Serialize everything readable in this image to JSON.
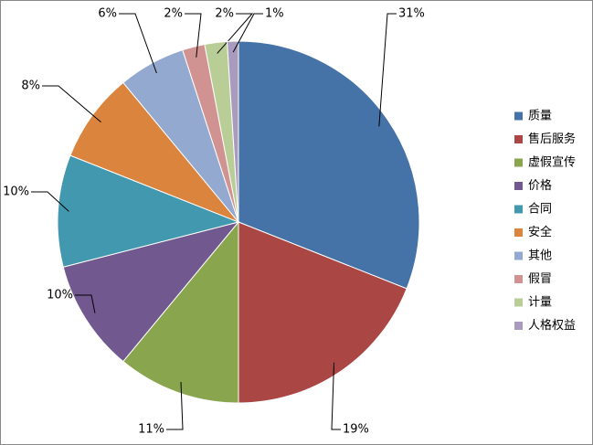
{
  "chart_data": {
    "type": "pie",
    "categories": [
      "质量",
      "售后服务",
      "虚假宣传",
      "价格",
      "合同",
      "安全",
      "其他",
      "假冒",
      "计量",
      "人格权益"
    ],
    "values": [
      31,
      19,
      11,
      10,
      10,
      8,
      6,
      2,
      2,
      1
    ],
    "value_labels": [
      "31%",
      "19%",
      "11%",
      "10%",
      "10%",
      "8%",
      "6%",
      "2%",
      "2%",
      "1%"
    ],
    "colors": [
      "#4572A7",
      "#AA4643",
      "#89A54E",
      "#71588F",
      "#4198AF",
      "#DB843D",
      "#93A9CF",
      "#D19392",
      "#B9CD96",
      "#A99BBD"
    ],
    "legend": "right"
  }
}
